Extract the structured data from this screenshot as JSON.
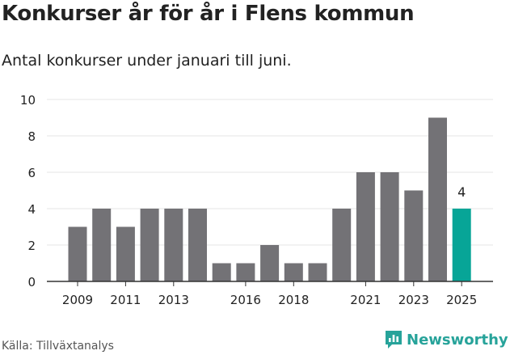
{
  "title": "Konkurser år för år i Flens kommun",
  "subtitle": "Antal konkurser under januari till juni.",
  "source": "Källa: Tillväxtanalys",
  "brand": {
    "name": "Newsworthy",
    "icon": "newsworthy-logo-icon"
  },
  "colors": {
    "bar": "#737276",
    "highlight": "#07a597",
    "axis": "#333333",
    "grid": "#e6e6e6",
    "text": "#222222"
  },
  "chart_data": {
    "type": "bar",
    "title": "Konkurser år för år i Flens kommun",
    "subtitle": "Antal konkurser under januari till juni.",
    "categories": [
      "2009",
      "2010",
      "2011",
      "2012",
      "2013",
      "2014",
      "2015",
      "2016",
      "2017",
      "2018",
      "2019",
      "2020",
      "2021",
      "2022",
      "2023",
      "2024",
      "2025"
    ],
    "values": [
      3,
      4,
      3,
      4,
      4,
      4,
      1,
      1,
      2,
      1,
      1,
      4,
      6,
      6,
      5,
      9,
      4
    ],
    "xticks": [
      "2009",
      "2011",
      "2013",
      "2016",
      "2018",
      "2021",
      "2023",
      "2025"
    ],
    "yticks": [
      0,
      2,
      4,
      6,
      8,
      10
    ],
    "ylim": [
      0,
      10
    ],
    "highlight": {
      "category": "2025",
      "label": "4"
    },
    "grid": true
  }
}
